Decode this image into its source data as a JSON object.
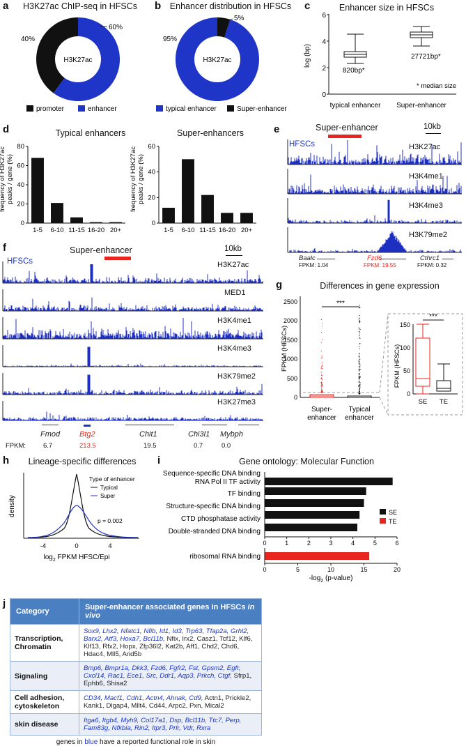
{
  "panel_a": {
    "letter": "a",
    "title": "H3K27ac ChIP-seq in HFSCs",
    "center": "H3K27ac",
    "pct_left": "40%",
    "pct_right": "60%",
    "legend": [
      "promoter",
      "enhancer"
    ]
  },
  "panel_b": {
    "letter": "b",
    "title": "Enhancer distribution in HFSCs",
    "center": "H3K27ac",
    "pct_left": "95%",
    "pct_right": "5%",
    "legend": [
      "typical enhancer",
      "Super-enhancer"
    ]
  },
  "panel_c": {
    "letter": "c",
    "title": "Enhancer size in HFSCs",
    "ylabel": "log (bp)",
    "yticks": [
      "0",
      "2",
      "4",
      "6"
    ],
    "xlabels": [
      "typical enhancer",
      "Super-enhancer"
    ],
    "median_te": "820bp*",
    "median_se": "27721bp*",
    "note": "* median size"
  },
  "panel_d": {
    "letter": "d",
    "left_title": "Typical enhancers",
    "right_title": "Super-enhancers",
    "ylabel_1": "frequency of H3K27ac",
    "ylabel_2": "peaks / gene (%)",
    "left_yticks": [
      "0",
      "20",
      "40",
      "60",
      "80"
    ],
    "right_yticks": [
      "0",
      "20",
      "40",
      "60"
    ]
  },
  "panel_e": {
    "letter": "e",
    "se_label": "Super-enhancer",
    "scale": "10kb",
    "cell": "HFSCs",
    "tracks": [
      "H3K27ac",
      "H3K4me1",
      "H3K4me3",
      "H3K79me2"
    ],
    "genes": [
      "Baalc",
      "Fzd6",
      "Cthrc1"
    ],
    "fpkm": [
      "FPKM: 1.04",
      "FPKM: 19.55",
      "FPKM: 0.32"
    ]
  },
  "panel_f": {
    "letter": "f",
    "se_label": "Super-enhancer",
    "scale": "10kb",
    "cell": "HFSCs",
    "tracks": [
      "H3K27ac",
      "MED1",
      "H3K4me1",
      "H3K4me3",
      "H3K79me2",
      "H3K27me3"
    ],
    "genes": [
      "Fmod",
      "Btg2",
      "Chit1",
      "Chi3l1",
      "Mybph"
    ],
    "fpkm_label": "FPKM:",
    "fpkm": [
      "6.7",
      "213.5",
      "19.5",
      "0.7",
      "0.0"
    ]
  },
  "panel_g": {
    "letter": "g",
    "title": "Differences in gene expression",
    "ylabel": "FPKM (HFSCs)",
    "yticks": [
      "0",
      "500",
      "1000",
      "1500",
      "2000",
      "2500"
    ],
    "xlabels": [
      "Super-\nenhancer",
      "Typical\nenhancer"
    ],
    "sig": "***",
    "inset_yticks": [
      "0",
      "50",
      "100",
      "150"
    ],
    "inset_xlabels": [
      "SE",
      "TE"
    ],
    "inset_ylabel": "FPKM (HFSCs)"
  },
  "panel_h": {
    "letter": "h",
    "title": "Lineage-specific differences",
    "ylabel": "density",
    "xlabel": "log2 FPKM HFSC/Epi",
    "xticks": [
      "-4",
      "0",
      "4"
    ],
    "legend_title": "Type of enhancer",
    "legend": [
      "Typical",
      "Super"
    ],
    "pval": "p = 0.002"
  },
  "panel_i": {
    "letter": "i",
    "title": "Gene ontology: Molecular Function",
    "xlabel": "-log2 (p-value)",
    "xticks_top": [
      "0",
      "1",
      "2",
      "3",
      "4",
      "5",
      "6"
    ],
    "xticks_bottom": [
      "0",
      "5",
      "10",
      "15",
      "20"
    ],
    "legend": [
      "SE",
      "TE"
    ]
  },
  "panel_j": {
    "letter": "j",
    "header_cat": "Category",
    "header_genes": "Super-enhancer associated genes in HFSCs in vivo",
    "rows": [
      {
        "cat": "Transcription, Chromatin",
        "blue": "Sox9, Lhx2, Nfatc1, Nfib, Id1, Id3, Trp63, Tfap2a, Grhl2, Barx2, Atf3, Hoxa7, Bcl11b,",
        "black": "Nfix, Irx2, Casz1, Tcf12, Klf6, Klf13, Rfx2, Hopx, Zfp36l2, Kat2b, Aff1, Chd2, Chd6, Hdac4, Mll5, Arid5b"
      },
      {
        "cat": "Signaling",
        "blue": "Bmp6, Bmpr1a, Dkk3, Fzd6, Fgfr2, Fst, Gpsm2, Egfr, Cxcl14, Rac1, Ece1, Src, Ddr1, Aqp3, Prkch, Ctgf,",
        "black": "Sfrp1, Ephb6, Shisa2"
      },
      {
        "cat": "Cell adhesion, cytoskeleton",
        "blue": "CD34, Macf1, Cdh1, Actn4, Ahnak, Cd9,",
        "black": "Actn1, Prickle2, Kank1, Dlgap4, Mllt4, Cd44, Arpc2, Pxn, Mical2"
      },
      {
        "cat": "skin disease",
        "blue": "Itga6, Itgb4, Myh9, Col17a1, Dsp, Bcl11b, Ttc7, Perp, Fam83g, Nfkbia, Rin2, Itpr3, Prlr, Vdr, Rxra",
        "black": ""
      }
    ],
    "footer": "genes in blue have a reported functional role in skin"
  },
  "colors": {
    "blue": "#1f35c8",
    "black": "#111111",
    "red": "#e8251f",
    "track_blue": "#1c2fc0"
  },
  "chart_data": [
    {
      "id": "a",
      "type": "pie",
      "categories": [
        "promoter",
        "enhancer"
      ],
      "values": [
        40,
        60
      ]
    },
    {
      "id": "b",
      "type": "pie",
      "categories": [
        "typical enhancer",
        "Super-enhancer"
      ],
      "values": [
        95,
        5
      ]
    },
    {
      "id": "d_left",
      "type": "bar",
      "categories": [
        "1-5",
        "6-10",
        "11-15",
        "16-20",
        "20+"
      ],
      "values": [
        68,
        21,
        6,
        1,
        1
      ],
      "ylim": [
        0,
        80
      ]
    },
    {
      "id": "d_right",
      "type": "bar",
      "categories": [
        "1-5",
        "6-10",
        "11-15",
        "16-20",
        "20+"
      ],
      "values": [
        12,
        50,
        22,
        8,
        8
      ],
      "ylim": [
        0,
        60
      ]
    },
    {
      "id": "i",
      "type": "bar",
      "orientation": "horizontal",
      "categories": [
        "Sequence-specific DNA binding RNA Pol II TF activity",
        "TF binding",
        "Structure-specific DNA binding",
        "CTD phosphatase activity",
        "Double-stranded DNA binding",
        "ribosomal RNA binding"
      ],
      "series": [
        {
          "name": "SE",
          "values": [
            5.8,
            4.6,
            4.5,
            4.3,
            4.2,
            null
          ]
        },
        {
          "name": "TE",
          "values": [
            null,
            null,
            null,
            null,
            null,
            15.8
          ]
        }
      ],
      "xlim_top": [
        0,
        6
      ],
      "xlim_bottom": [
        0,
        20
      ]
    }
  ]
}
